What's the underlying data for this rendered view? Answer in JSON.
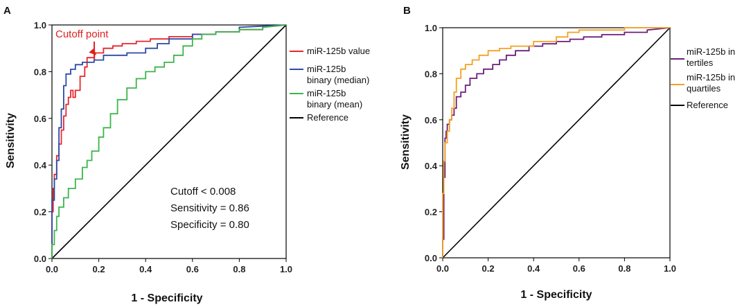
{
  "chart_data": [
    {
      "panel": "A",
      "type": "line",
      "xlabel": "1 - Specificity",
      "ylabel": "Sensitivity",
      "xlim": [
        0,
        1
      ],
      "ylim": [
        0,
        1
      ],
      "xticks": [
        "0.0",
        "0.2",
        "0.4",
        "0.6",
        "0.8",
        "1.0"
      ],
      "yticks": [
        "0.0",
        "0.2",
        "0.4",
        "0.6",
        "0.8",
        "1.0"
      ],
      "legend_position": "right",
      "series": [
        {
          "name": "miR-125b value",
          "color": "#e8262c",
          "x": [
            0,
            0,
            0.005,
            0.005,
            0.01,
            0.01,
            0.02,
            0.02,
            0.03,
            0.03,
            0.04,
            0.04,
            0.05,
            0.05,
            0.06,
            0.06,
            0.07,
            0.07,
            0.08,
            0.08,
            0.09,
            0.09,
            0.1,
            0.1,
            0.12,
            0.12,
            0.14,
            0.14,
            0.15,
            0.15,
            0.18,
            0.18,
            0.22,
            0.22,
            0.26,
            0.26,
            0.3,
            0.3,
            0.36,
            0.36,
            0.42,
            0.42,
            0.5,
            0.5,
            0.6,
            0.6,
            0.7,
            0.7,
            0.8,
            0.8,
            0.9,
            0.9,
            1.0
          ],
          "y": [
            0,
            0.2,
            0.2,
            0.3,
            0.3,
            0.36,
            0.36,
            0.44,
            0.44,
            0.49,
            0.49,
            0.55,
            0.55,
            0.61,
            0.61,
            0.66,
            0.66,
            0.69,
            0.69,
            0.72,
            0.72,
            0.69,
            0.69,
            0.72,
            0.72,
            0.78,
            0.78,
            0.82,
            0.82,
            0.86,
            0.86,
            0.88,
            0.88,
            0.9,
            0.9,
            0.91,
            0.91,
            0.92,
            0.92,
            0.93,
            0.93,
            0.94,
            0.94,
            0.95,
            0.95,
            0.96,
            0.96,
            0.97,
            0.97,
            0.98,
            0.98,
            0.99,
            1.0
          ]
        },
        {
          "name": "miR-125b binary (median)",
          "color": "#2b4aa8",
          "x": [
            0,
            0,
            0.01,
            0.01,
            0.02,
            0.02,
            0.03,
            0.03,
            0.04,
            0.04,
            0.05,
            0.05,
            0.06,
            0.06,
            0.08,
            0.08,
            0.1,
            0.1,
            0.13,
            0.13,
            0.18,
            0.18,
            0.22,
            0.22,
            0.28,
            0.28,
            0.32,
            0.32,
            0.4,
            0.4,
            0.45,
            0.45,
            0.5,
            0.5,
            0.6,
            0.6,
            0.7,
            0.7,
            0.8,
            0.8,
            1.0
          ],
          "y": [
            0,
            0.25,
            0.25,
            0.34,
            0.34,
            0.42,
            0.42,
            0.56,
            0.56,
            0.64,
            0.64,
            0.74,
            0.74,
            0.79,
            0.79,
            0.81,
            0.81,
            0.83,
            0.83,
            0.84,
            0.84,
            0.85,
            0.85,
            0.87,
            0.87,
            0.87,
            0.87,
            0.88,
            0.88,
            0.9,
            0.9,
            0.92,
            0.92,
            0.94,
            0.94,
            0.96,
            0.96,
            0.97,
            0.97,
            0.99,
            1.0
          ]
        },
        {
          "name": "miR-125b binary (mean)",
          "color": "#3cb44b",
          "x": [
            0,
            0,
            0.01,
            0.01,
            0.02,
            0.02,
            0.03,
            0.03,
            0.05,
            0.05,
            0.07,
            0.07,
            0.1,
            0.1,
            0.13,
            0.13,
            0.15,
            0.15,
            0.17,
            0.17,
            0.2,
            0.2,
            0.22,
            0.22,
            0.25,
            0.25,
            0.28,
            0.28,
            0.32,
            0.32,
            0.36,
            0.36,
            0.4,
            0.4,
            0.44,
            0.44,
            0.48,
            0.48,
            0.52,
            0.52,
            0.56,
            0.56,
            0.6,
            0.6,
            0.64,
            0.64,
            0.7,
            0.7,
            0.8,
            0.8,
            0.9,
            0.9,
            1.0
          ],
          "y": [
            0,
            0.06,
            0.06,
            0.12,
            0.12,
            0.18,
            0.18,
            0.22,
            0.22,
            0.26,
            0.26,
            0.3,
            0.3,
            0.34,
            0.34,
            0.39,
            0.39,
            0.42,
            0.42,
            0.46,
            0.46,
            0.52,
            0.52,
            0.56,
            0.56,
            0.62,
            0.62,
            0.68,
            0.68,
            0.73,
            0.73,
            0.77,
            0.77,
            0.8,
            0.8,
            0.82,
            0.82,
            0.84,
            0.84,
            0.87,
            0.87,
            0.91,
            0.91,
            0.94,
            0.94,
            0.96,
            0.96,
            0.97,
            0.97,
            0.98,
            0.98,
            0.99,
            1.0
          ]
        },
        {
          "name": "Reference",
          "color": "#000000",
          "x": [
            0,
            1
          ],
          "y": [
            0,
            1
          ]
        }
      ],
      "annotations": {
        "cutoff_label": "Cutoff point",
        "cutoff_point": [
          0.19,
          0.87
        ],
        "stats": [
          "Cutoff < 0.008",
          "Sensitivity = 0.86",
          "Specificity = 0.80"
        ]
      }
    },
    {
      "panel": "B",
      "type": "line",
      "xlabel": "1 - Specificity",
      "ylabel": "Sensitivity",
      "xlim": [
        0,
        1
      ],
      "ylim": [
        0,
        1
      ],
      "xticks": [
        "0.0",
        "0.2",
        "0.4",
        "0.6",
        "0.8",
        "1.0"
      ],
      "yticks": [
        "0.0",
        "0.2",
        "0.4",
        "0.6",
        "0.8",
        "1.0"
      ],
      "legend_position": "right",
      "series": [
        {
          "name": "miR-125b in tertiles",
          "color": "#6a1f7a",
          "x": [
            0,
            0,
            0.005,
            0.005,
            0.01,
            0.01,
            0.015,
            0.015,
            0.02,
            0.02,
            0.03,
            0.03,
            0.04,
            0.04,
            0.05,
            0.05,
            0.06,
            0.06,
            0.08,
            0.08,
            0.1,
            0.1,
            0.12,
            0.12,
            0.15,
            0.15,
            0.18,
            0.18,
            0.22,
            0.22,
            0.25,
            0.25,
            0.28,
            0.28,
            0.32,
            0.32,
            0.38,
            0.38,
            0.44,
            0.44,
            0.5,
            0.5,
            0.56,
            0.56,
            0.62,
            0.62,
            0.7,
            0.7,
            0.8,
            0.8,
            0.9,
            0.9,
            1.0
          ],
          "y": [
            0,
            0.08,
            0.08,
            0.35,
            0.35,
            0.52,
            0.52,
            0.55,
            0.55,
            0.58,
            0.58,
            0.6,
            0.6,
            0.62,
            0.62,
            0.65,
            0.65,
            0.7,
            0.7,
            0.72,
            0.72,
            0.75,
            0.75,
            0.78,
            0.78,
            0.8,
            0.8,
            0.82,
            0.82,
            0.84,
            0.84,
            0.86,
            0.86,
            0.88,
            0.88,
            0.9,
            0.9,
            0.92,
            0.92,
            0.93,
            0.93,
            0.94,
            0.94,
            0.95,
            0.95,
            0.96,
            0.96,
            0.97,
            0.97,
            0.98,
            0.98,
            0.99,
            1.0
          ]
        },
        {
          "name": "miR-125b in quartiles",
          "color": "#f5a020",
          "x": [
            0,
            0,
            0.005,
            0.005,
            0.01,
            0.01,
            0.02,
            0.02,
            0.03,
            0.03,
            0.04,
            0.04,
            0.05,
            0.05,
            0.06,
            0.06,
            0.08,
            0.08,
            0.1,
            0.1,
            0.13,
            0.13,
            0.16,
            0.16,
            0.2,
            0.2,
            0.25,
            0.25,
            0.3,
            0.3,
            0.4,
            0.4,
            0.5,
            0.5,
            0.55,
            0.55,
            0.6,
            0.6,
            0.7,
            0.7,
            0.8,
            0.8,
            0.9,
            0.9,
            1.0
          ],
          "y": [
            0,
            0.28,
            0.28,
            0.42,
            0.42,
            0.5,
            0.5,
            0.55,
            0.55,
            0.6,
            0.6,
            0.65,
            0.65,
            0.72,
            0.72,
            0.78,
            0.78,
            0.82,
            0.82,
            0.84,
            0.84,
            0.86,
            0.86,
            0.88,
            0.88,
            0.9,
            0.9,
            0.91,
            0.91,
            0.92,
            0.92,
            0.94,
            0.94,
            0.96,
            0.96,
            0.98,
            0.98,
            0.99,
            0.99,
            0.99,
            0.99,
            1.0,
            1.0,
            1.0,
            1.0
          ]
        },
        {
          "name": "Reference",
          "color": "#000000",
          "x": [
            0,
            1
          ],
          "y": [
            0,
            1
          ]
        }
      ]
    }
  ],
  "legendA": {
    "l1": "miR-125b value",
    "l2a": "miR-125b",
    "l2b": "binary (median)",
    "l3a": "miR-125b",
    "l3b": "binary (mean)",
    "l4": "Reference"
  },
  "legendB": {
    "l1a": "miR-125b in",
    "l1b": "tertiles",
    "l2a": "miR-125b in",
    "l2b": "quartiles",
    "l3": "Reference"
  }
}
